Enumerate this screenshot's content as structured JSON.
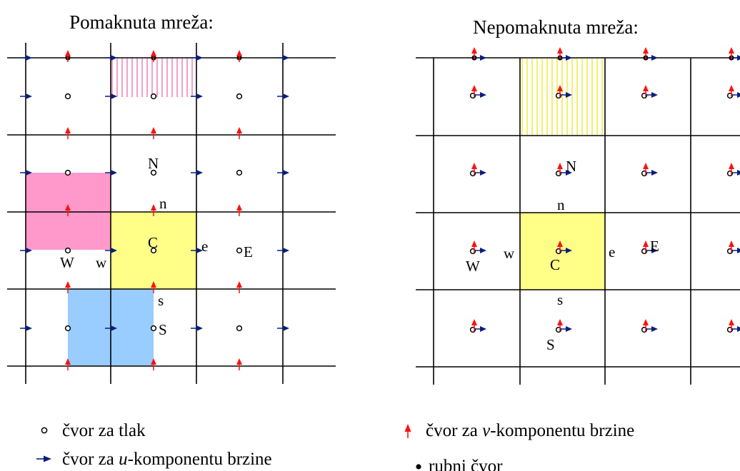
{
  "colors": {
    "u_arrow": "#0a1f7a",
    "v_arrow": "#ff1010",
    "grid": "#000000",
    "staggered_cv_u": "#ff99cc",
    "staggered_cv_v": "#99ccff",
    "scalar_cv": "#ffff88",
    "hatch_pink": "#f2a0c8",
    "hatch_yellow": "#f4f06a"
  },
  "staggered": {
    "title": "Pomaknuta mreža:",
    "labels": {
      "N": "N",
      "n": "n",
      "C": "C",
      "e": "e",
      "E": "E",
      "W": "W",
      "w": "w",
      "s": "s",
      "S": "S"
    }
  },
  "collocated": {
    "title": "Nepomaknuta mreža:",
    "labels": {
      "N": "N",
      "n": "n",
      "C": "C",
      "e": "e",
      "E": "E",
      "W": "W",
      "w": "w",
      "s": "s",
      "S": "S"
    }
  },
  "legend": {
    "pressure_node": "čvor za tlak",
    "u_node_prefix": "čvor za ",
    "u_node_var": "u",
    "u_node_suffix": "-komponentu brzine",
    "v_node_prefix": "čvor za ",
    "v_node_var": "v",
    "v_node_suffix": "-komponentu brzine",
    "boundary_node": "rubni čvor"
  },
  "icons": {
    "pressure": "hollow-circle-icon",
    "u_velocity": "blue-right-arrow-icon",
    "v_velocity": "red-up-arrow-icon",
    "boundary": "filled-dot-icon"
  }
}
